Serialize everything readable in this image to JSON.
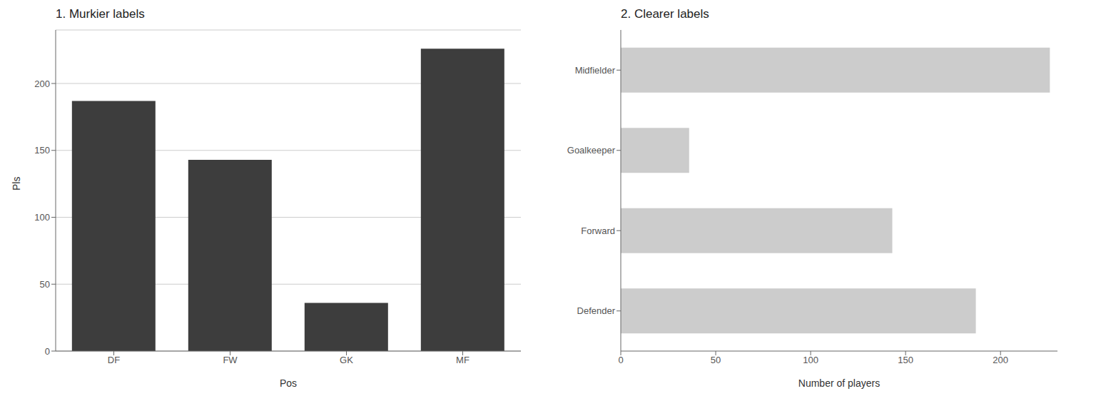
{
  "chart_data": [
    {
      "type": "bar",
      "title": "1. Murkier labels",
      "categories": [
        "DF",
        "FW",
        "GK",
        "MF"
      ],
      "values": [
        187,
        143,
        36,
        226
      ],
      "color": "#3d3d3d",
      "xlabel": "Pos",
      "ylabel": "Pls",
      "ylim": [
        0,
        240
      ],
      "yticks": [
        0,
        50,
        100,
        150,
        200
      ],
      "grid": true
    },
    {
      "type": "bar",
      "title": "2. Clearer labels",
      "orientation": "horizontal",
      "categories": [
        "Midfielder",
        "Goalkeeper",
        "Forward",
        "Defender"
      ],
      "values": [
        226,
        36,
        143,
        187
      ],
      "color": "#cccccc",
      "xlabel": "Number of players",
      "xlim": [
        0,
        230
      ],
      "xticks": [
        0,
        50,
        100,
        150,
        200
      ],
      "grid": false
    }
  ]
}
